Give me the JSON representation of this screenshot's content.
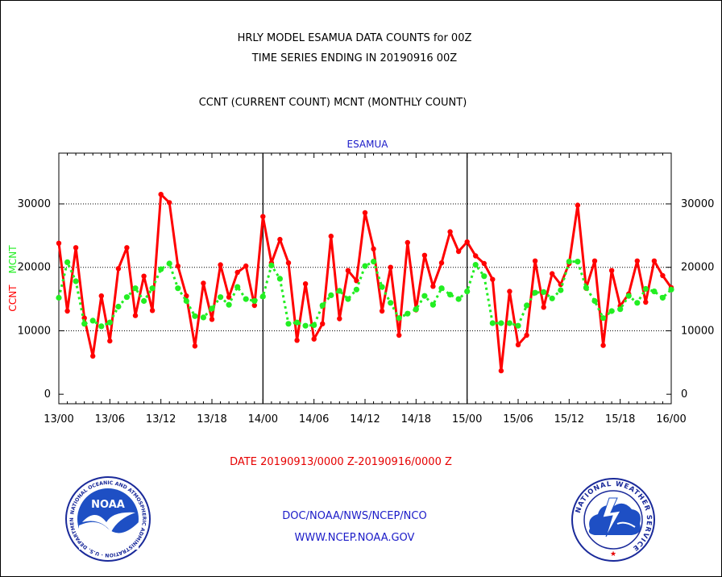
{
  "header": {
    "title_line1": "HRLY MODEL ESAMUA DATA COUNTS for 00Z",
    "title_line2": "TIME SERIES ENDING IN 20190916 00Z",
    "subtitle": "CCNT (CURRENT COUNT) MCNT (MONTHLY COUNT)"
  },
  "footer": {
    "date_range": "DATE 20190913/0000 Z-20190916/0000 Z",
    "org": "DOC/NOAA/NWS/NCEP/NCO",
    "url": "WWW.NCEP.NOAA.GOV"
  },
  "logos": {
    "left": "NOAA",
    "left_ring_text": "NATIONAL OCEANIC AND ATMOSPHERIC ADMINISTRATION · U.S. DEPARTMENT OF COMMERCE",
    "right_ring_text": "NATIONAL WEATHER SERVICE"
  },
  "colors": {
    "ccnt": "#ff0000",
    "mcnt": "#22ee22",
    "axis": "#000000",
    "title_blue": "#1b1bc8"
  },
  "chart_data": {
    "type": "line",
    "title": "ESAMUA",
    "ylabel_parts": [
      "CCNT",
      "MCNT"
    ],
    "x_tick_labels": [
      "13/00",
      "13/06",
      "13/12",
      "13/18",
      "14/00",
      "14/06",
      "14/12",
      "14/18",
      "15/00",
      "15/06",
      "15/12",
      "15/18",
      "16/00"
    ],
    "x_range_hours": [
      0,
      72
    ],
    "y_ticks": [
      0,
      10000,
      20000,
      30000
    ],
    "ylim": [
      -1500,
      38000
    ],
    "grid": "horizontal dotted at 10000, 20000, 30000; solid vertical day separators at 14/00 and 15/00",
    "series": [
      {
        "name": "CCNT",
        "color": "#ff0000",
        "values": [
          23800,
          13100,
          23100,
          12000,
          6000,
          15500,
          8400,
          19800,
          23100,
          12400,
          18600,
          13200,
          31500,
          30200,
          20200,
          15500,
          7600,
          17500,
          11800,
          20400,
          15300,
          19200,
          20200,
          14000,
          28000,
          20700,
          24400,
          20700,
          8500,
          17400,
          8700,
          11100,
          24900,
          11900,
          19500,
          17900,
          28600,
          22900,
          13100,
          20000,
          9300,
          23900,
          13300,
          21900,
          17000,
          20700,
          25600,
          22500,
          24000,
          21800,
          20600,
          18100,
          3700,
          16200,
          7800,
          9300,
          21000,
          13700,
          19000,
          17300,
          20600,
          29800,
          16700,
          21000,
          7700,
          19500,
          13900,
          15800,
          21000,
          14500,
          21000,
          18700,
          16800
        ]
      },
      {
        "name": "MCNT",
        "color": "#22ee22",
        "values": [
          15200,
          20800,
          17800,
          11100,
          11600,
          10700,
          11300,
          13800,
          15300,
          16700,
          14700,
          16700,
          19700,
          20600,
          16700,
          14700,
          12300,
          12100,
          13500,
          15300,
          14100,
          16900,
          15000,
          14700,
          15400,
          20300,
          18200,
          11100,
          11300,
          10800,
          10900,
          14000,
          15600,
          16300,
          15000,
          16500,
          20200,
          20900,
          16900,
          14400,
          12000,
          12700,
          13400,
          15500,
          14100,
          16700,
          15700,
          15000,
          16200,
          20400,
          18600,
          11200,
          11200,
          11200,
          10800,
          14000,
          16000,
          16100,
          15100,
          16400,
          20900,
          20900,
          16800,
          14700,
          12000,
          13100,
          13400,
          15500,
          14400,
          16600,
          16200,
          15200,
          16500
        ]
      }
    ]
  }
}
